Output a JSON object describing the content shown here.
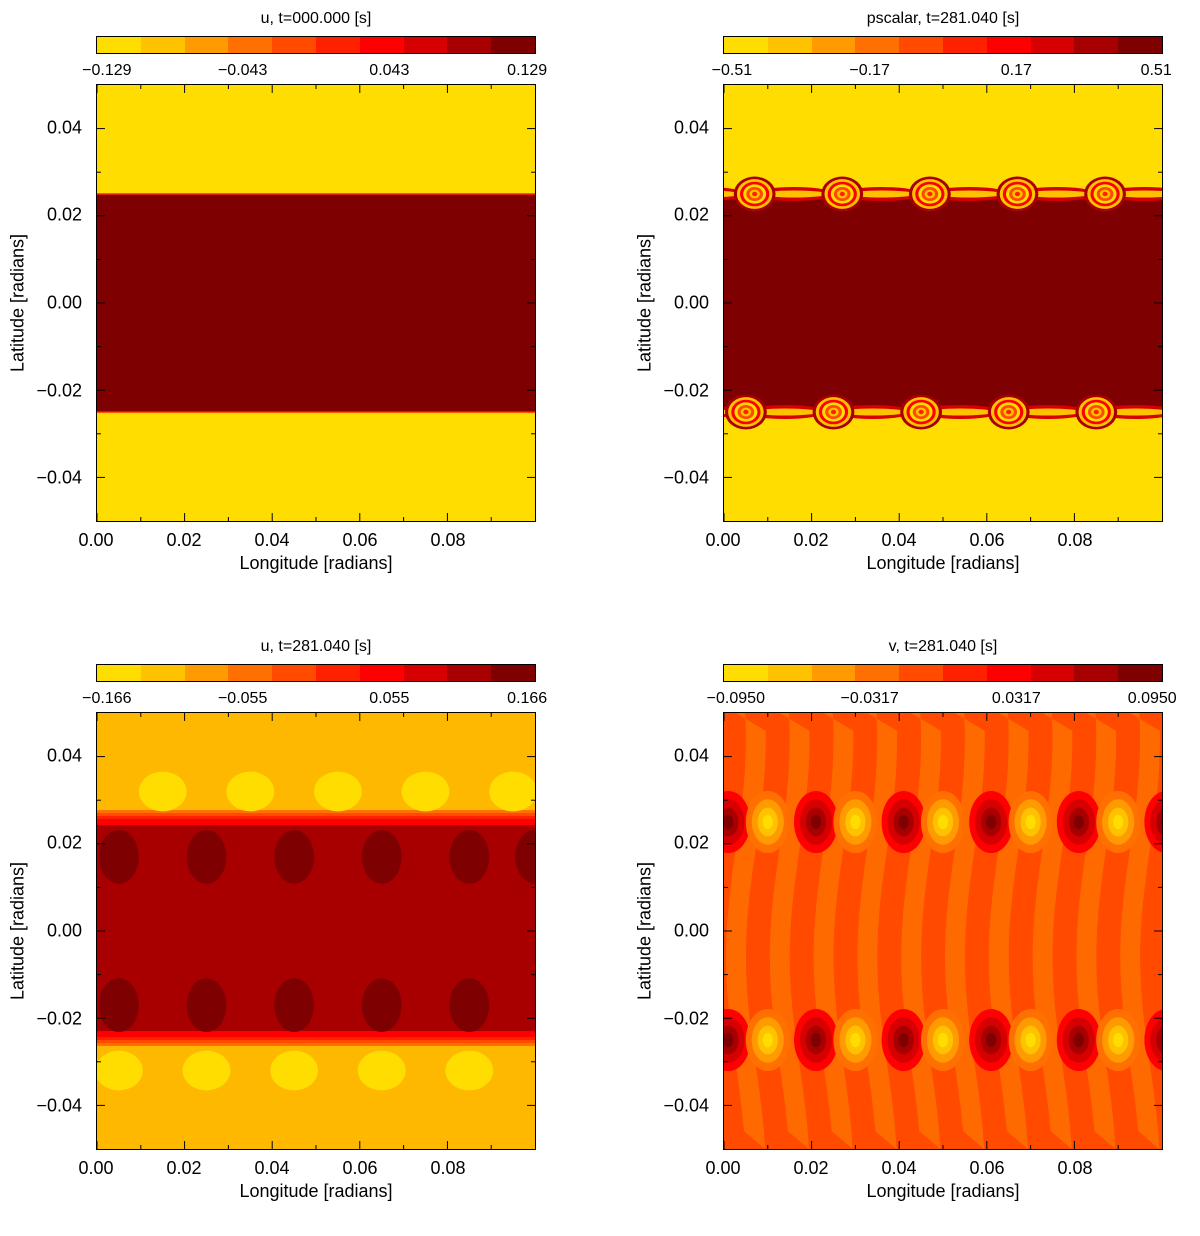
{
  "chart_data": [
    {
      "type": "heatmap",
      "title": "u, t=000.000  [s]",
      "xlabel": "Longitude [radians]",
      "ylabel": "Latitude [radians]",
      "xlim": [
        0.0,
        0.1
      ],
      "ylim": [
        -0.05,
        0.05
      ],
      "xticks": [
        "0.00",
        "0.02",
        "0.04",
        "0.06",
        "0.08"
      ],
      "yticks": [
        "0.04",
        "0.02",
        "0.00",
        "−0.02",
        "−0.04"
      ],
      "colorbar_ticks": [
        "−0.129",
        "−0.043",
        "0.043",
        "0.129"
      ],
      "colorbar_range": [
        -0.129,
        0.129
      ],
      "colorbar_colors": [
        "#ffdd00",
        "#ffc200",
        "#ff9a00",
        "#ff7000",
        "#ff4a00",
        "#ff2000",
        "#ff0000",
        "#d60000",
        "#a80000",
        "#7f0000"
      ],
      "pattern": "initial_jet",
      "jet_half_width": 0.025,
      "waves": 0,
      "background_color": "#ffdd00",
      "jet_color": "#7f0000"
    },
    {
      "type": "heatmap",
      "title": "pscalar, t=281.040  [s]",
      "xlabel": "Longitude [radians]",
      "ylabel": "Latitude [radians]",
      "xlim": [
        0.0,
        0.1
      ],
      "ylim": [
        -0.05,
        0.05
      ],
      "xticks": [
        "0.00",
        "0.02",
        "0.04",
        "0.06",
        "0.08"
      ],
      "yticks": [
        "0.04",
        "0.02",
        "0.00",
        "−0.02",
        "−0.04"
      ],
      "colorbar_ticks": [
        "−0.51",
        "−0.17",
        "0.17",
        "0.51"
      ],
      "colorbar_range": [
        -0.51,
        0.51
      ],
      "colorbar_colors": [
        "#ffdd00",
        "#ffc200",
        "#ff9a00",
        "#ff7000",
        "#ff4a00",
        "#ff2000",
        "#ff0000",
        "#d60000",
        "#a80000",
        "#7f0000"
      ],
      "pattern": "kelvin_helmholtz_vortices",
      "jet_half_width": 0.025,
      "waves": 5,
      "background_color": "#ffdd00",
      "jet_color": "#7f0000"
    },
    {
      "type": "heatmap",
      "title": "u, t=281.040  [s]",
      "xlabel": "Longitude [radians]",
      "ylabel": "Latitude [radians]",
      "xlim": [
        0.0,
        0.1
      ],
      "ylim": [
        -0.05,
        0.05
      ],
      "xticks": [
        "0.00",
        "0.02",
        "0.04",
        "0.06",
        "0.08"
      ],
      "yticks": [
        "0.04",
        "0.02",
        "0.00",
        "−0.02",
        "−0.04"
      ],
      "colorbar_ticks": [
        "−0.166",
        "−0.055",
        "0.055",
        "0.166"
      ],
      "colorbar_range": [
        -0.166,
        0.166
      ],
      "colorbar_colors": [
        "#ffdd00",
        "#ffc200",
        "#ff9a00",
        "#ff7000",
        "#ff4a00",
        "#ff2000",
        "#ff0000",
        "#d60000",
        "#a80000",
        "#7f0000"
      ],
      "pattern": "u_perturbed_jet",
      "jet_half_width": 0.025,
      "waves": 5,
      "background_color": "#ffb800",
      "jet_color": "#a80000"
    },
    {
      "type": "heatmap",
      "title": "v, t=281.040  [s]",
      "xlabel": "Longitude [radians]",
      "ylabel": "Latitude [radians]",
      "xlim": [
        0.0,
        0.1
      ],
      "ylim": [
        -0.05,
        0.05
      ],
      "xticks": [
        "0.00",
        "0.02",
        "0.04",
        "0.06",
        "0.08"
      ],
      "yticks": [
        "0.04",
        "0.02",
        "0.00",
        "−0.02",
        "−0.04"
      ],
      "colorbar_ticks": [
        "−0.0950",
        "−0.0317",
        "0.0317",
        "0.0950"
      ],
      "colorbar_range": [
        -0.095,
        0.095
      ],
      "colorbar_colors": [
        "#ffdd00",
        "#ffc200",
        "#ff9a00",
        "#ff7000",
        "#ff4a00",
        "#ff2000",
        "#ff0000",
        "#d60000",
        "#a80000",
        "#7f0000"
      ],
      "pattern": "v_dipoles",
      "jet_half_width": 0.025,
      "waves": 5,
      "background_color": "#ff4a00",
      "jet_color": "#ff4a00"
    }
  ]
}
